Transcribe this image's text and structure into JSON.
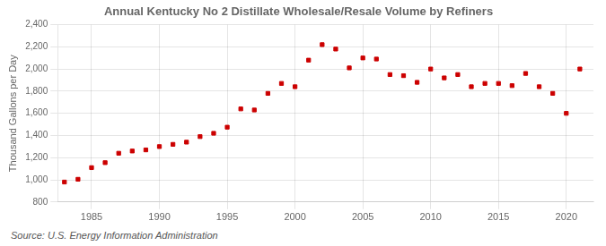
{
  "chart_data": {
    "type": "scatter",
    "title": "Annual Kentucky No 2 Distillate Wholesale/Resale Volume by Refiners",
    "y_label": "Thousand Gallons per Day",
    "annotations": [
      "Source: U.S. Energy Information Administration"
    ],
    "x": [
      1983,
      1984,
      1985,
      1986,
      1987,
      1988,
      1989,
      1990,
      1991,
      1992,
      1993,
      1994,
      1995,
      1996,
      1997,
      1998,
      1999,
      2000,
      2001,
      2002,
      2003,
      2004,
      2005,
      2006,
      2007,
      2008,
      2009,
      2010,
      2011,
      2012,
      2013,
      2014,
      2015,
      2016,
      2017,
      2018,
      2019,
      2020,
      2021
    ],
    "values": [
      980,
      1005,
      1110,
      1155,
      1240,
      1260,
      1270,
      1300,
      1320,
      1340,
      1390,
      1420,
      1475,
      1640,
      1630,
      1780,
      1870,
      1840,
      2080,
      2220,
      2180,
      2010,
      2100,
      2090,
      1950,
      1940,
      1880,
      2000,
      1920,
      1950,
      1840,
      1870,
      1870,
      1850,
      1960,
      1840,
      1780,
      1600,
      2000
    ],
    "color": "#cc0000",
    "marker": "square",
    "xlim": [
      1982.5,
      2022
    ],
    "xticks": [
      1985,
      1990,
      1995,
      2000,
      2005,
      2010,
      2015,
      2020
    ],
    "ylim": [
      800,
      2400
    ],
    "yticks": [
      800,
      {
        "value": 1000,
        "label": "1,000"
      },
      {
        "value": 1200,
        "label": "1,200"
      },
      {
        "value": 1400,
        "label": "1,400"
      },
      {
        "value": 1600,
        "label": "1,600"
      },
      {
        "value": 1800,
        "label": "1,800"
      },
      {
        "value": 2000,
        "label": "2,000"
      },
      {
        "value": 2200,
        "label": "2,200"
      },
      {
        "value": 2400,
        "label": "2,400"
      }
    ],
    "grid": true
  }
}
